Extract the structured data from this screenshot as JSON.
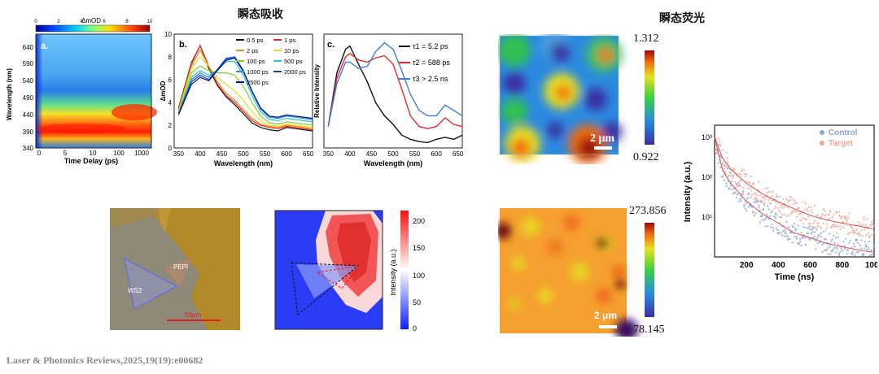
{
  "titles": {
    "transient_absorption": "瞬态吸收",
    "transient_fluorescence": "瞬态荧光"
  },
  "citation": "Laser & Photonics Reviews,2025,19(19):e00682",
  "panel_a": {
    "label": "a.",
    "colorbar_title": "ΔmOD",
    "colorbar_ticks": [
      "0",
      "2",
      "4",
      "6",
      "8",
      "10"
    ],
    "ylabel": "Wavelength (nm)",
    "yticks": [
      "640",
      "590",
      "540",
      "490",
      "440",
      "390",
      "340"
    ],
    "xlabel": "Time Delay (ps)",
    "xticks": [
      "0",
      "5",
      "10",
      "100",
      "1000"
    ]
  },
  "panel_b": {
    "label": "b.",
    "ylabel": "ΔmOD",
    "yticks": [
      "0",
      "2",
      "4",
      "6",
      "8",
      "10"
    ],
    "xlabel": "Wavelength (nm)",
    "xticks": [
      "350",
      "400",
      "450",
      "500",
      "550",
      "600",
      "650"
    ],
    "legend": [
      "0.5 ps",
      "1 ps",
      "2 ps",
      "10 ps",
      "100 ps",
      "500 ps",
      "1000 ps",
      "2000 ps",
      "2500 ps"
    ]
  },
  "panel_c": {
    "label": "c.",
    "ylabel": "Relative Intensity",
    "xlabel": "Wavelength (nm)",
    "xticks": [
      "350",
      "400",
      "450",
      "500",
      "550",
      "600",
      "650"
    ],
    "legend": [
      "τ1 = 5.2 ps",
      "τ2 = 588 ps",
      "τ3 > 2.5 ns"
    ]
  },
  "optical": {
    "ws2_label": "WS2",
    "pepi_label": "PEPI",
    "scale_label": "50μm"
  },
  "pl_map": {
    "ylabel": "Intensity (a.u.)",
    "ticks": [
      "0",
      "50",
      "100",
      "150",
      "200"
    ]
  },
  "fl_map_top": {
    "max": "1.312",
    "min": "0.922",
    "scale": "2 μm"
  },
  "fl_map_bottom": {
    "max": "273.856",
    "min": "78.145",
    "scale": "2 μm"
  },
  "decay": {
    "ylabel": "Intensity (a.u.)",
    "xlabel": "Time (ns)",
    "xticks": [
      "200",
      "400",
      "600",
      "800",
      "1000"
    ],
    "yticks": [
      "10³",
      "10²",
      "10¹"
    ],
    "legend": [
      "Control",
      "Target"
    ]
  },
  "colors": {
    "control": "#8fa3d6",
    "target": "#f2a59a",
    "fit": "#d9534f",
    "red": "#e8292b",
    "blue": "#3b7ee0",
    "black": "#111111"
  },
  "chart_data": [
    {
      "type": "line",
      "title": "",
      "xlabel": "Wavelength (nm)",
      "ylabel": "ΔmOD",
      "xlim": [
        340,
        660
      ],
      "ylim": [
        0,
        10
      ],
      "x": [
        350,
        380,
        400,
        420,
        440,
        460,
        480,
        500,
        520,
        540,
        560,
        580,
        600,
        620,
        640,
        660
      ],
      "series": [
        {
          "name": "0.5 ps",
          "color": "#111111",
          "values": [
            3.5,
            7.5,
            9.0,
            7.0,
            5.5,
            4.5,
            3.8,
            3.0,
            2.2,
            1.8,
            1.6,
            1.5,
            1.8,
            1.7,
            1.6,
            1.5
          ]
        },
        {
          "name": "1 ps",
          "color": "#e8292b",
          "values": [
            3.4,
            7.4,
            9.0,
            7.2,
            5.6,
            4.6,
            4.0,
            3.2,
            2.4,
            2.0,
            1.8,
            1.7,
            1.9,
            1.8,
            1.7,
            1.6
          ]
        },
        {
          "name": "2 ps",
          "color": "#f08a1c",
          "values": [
            3.3,
            7.2,
            8.6,
            7.2,
            5.8,
            4.8,
            4.2,
            3.4,
            2.6,
            2.1,
            1.9,
            1.8,
            2.0,
            1.9,
            1.8,
            1.7
          ]
        },
        {
          "name": "10 ps",
          "color": "#e6e020",
          "values": [
            3.2,
            7.0,
            8.0,
            7.2,
            6.2,
            5.6,
            5.0,
            4.2,
            3.2,
            2.4,
            2.0,
            1.9,
            2.1,
            2.0,
            1.9,
            1.8
          ]
        },
        {
          "name": "100 ps",
          "color": "#7ed321",
          "values": [
            3.1,
            6.6,
            7.2,
            6.8,
            6.6,
            6.6,
            6.4,
            5.4,
            4.0,
            2.8,
            2.2,
            2.1,
            2.3,
            2.2,
            2.1,
            2.0
          ]
        },
        {
          "name": "500 ps",
          "color": "#29c9c9",
          "values": [
            3.0,
            6.2,
            6.8,
            6.4,
            6.8,
            7.6,
            7.6,
            6.4,
            4.6,
            3.2,
            2.5,
            2.4,
            2.6,
            2.5,
            2.4,
            2.3
          ]
        },
        {
          "name": "1000 ps",
          "color": "#2c8ae0",
          "values": [
            3.0,
            6.0,
            6.6,
            6.2,
            6.9,
            7.9,
            8.0,
            6.8,
            4.9,
            3.4,
            2.7,
            2.6,
            2.8,
            2.7,
            2.6,
            2.5
          ]
        },
        {
          "name": "2000 ps",
          "color": "#1a3fc2",
          "values": [
            3.0,
            5.8,
            6.4,
            6.0,
            6.9,
            7.8,
            8.0,
            6.8,
            5.0,
            3.5,
            2.8,
            2.7,
            2.9,
            2.8,
            2.7,
            2.6
          ]
        },
        {
          "name": "2500 ps",
          "color": "#0a1a8a",
          "values": [
            2.9,
            5.6,
            6.2,
            5.9,
            6.8,
            7.7,
            7.9,
            6.7,
            5.0,
            3.5,
            2.8,
            2.7,
            2.9,
            2.8,
            2.7,
            2.6
          ]
        }
      ]
    },
    {
      "type": "line",
      "title": "",
      "xlabel": "Wavelength (nm)",
      "ylabel": "Relative Intensity",
      "xlim": [
        340,
        660
      ],
      "ylim": [
        0,
        1
      ],
      "x": [
        350,
        370,
        390,
        400,
        420,
        440,
        460,
        480,
        500,
        520,
        540,
        560,
        580,
        600,
        620,
        640,
        660
      ],
      "series": [
        {
          "name": "τ1 = 5.2 ps",
          "color": "#111111",
          "values": [
            0.2,
            0.7,
            0.92,
            0.95,
            0.78,
            0.62,
            0.42,
            0.3,
            0.22,
            0.12,
            0.08,
            0.06,
            0.05,
            0.08,
            0.1,
            0.08,
            0.12
          ]
        },
        {
          "name": "τ2 = 588 ps",
          "color": "#e8292b",
          "values": [
            0.2,
            0.65,
            0.85,
            0.88,
            0.82,
            0.8,
            0.84,
            0.86,
            0.78,
            0.55,
            0.3,
            0.2,
            0.18,
            0.2,
            0.28,
            0.22,
            0.2
          ]
        },
        {
          "name": "τ3 > 2.5 ns",
          "color": "#3b7ee0",
          "values": [
            0.2,
            0.6,
            0.8,
            0.8,
            0.74,
            0.76,
            0.9,
            0.98,
            0.92,
            0.72,
            0.5,
            0.35,
            0.3,
            0.3,
            0.4,
            0.35,
            0.3
          ]
        }
      ]
    },
    {
      "type": "scatter",
      "title": "",
      "xlabel": "Time (ns)",
      "ylabel": "Intensity (a.u.)",
      "yscale": "log",
      "xlim": [
        0,
        1000
      ],
      "ylim": [
        1,
        2000
      ],
      "x": [
        0,
        50,
        100,
        200,
        300,
        400,
        500,
        600,
        700,
        800,
        900,
        1000
      ],
      "series": [
        {
          "name": "Control",
          "color": "#8fa3d6",
          "values": [
            1000,
            150,
            70,
            25,
            12,
            7,
            4,
            3,
            2.2,
            1.8,
            1.5,
            1.3
          ]
        },
        {
          "name": "Target",
          "color": "#f2a59a",
          "values": [
            1000,
            300,
            160,
            70,
            38,
            24,
            16,
            11,
            8.5,
            7,
            6,
            5
          ]
        }
      ]
    }
  ]
}
